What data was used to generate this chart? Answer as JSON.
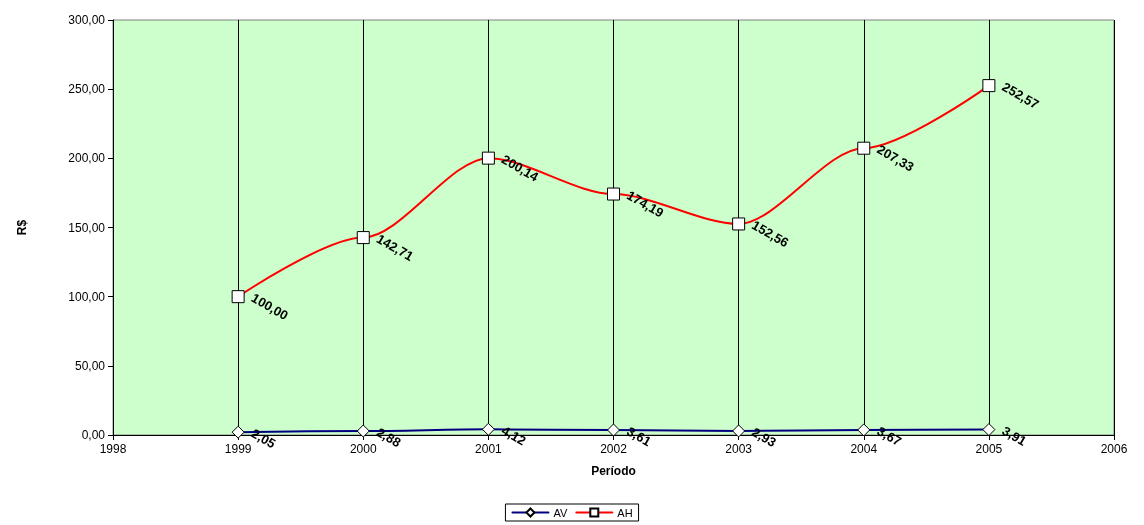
{
  "chart_data": {
    "type": "line",
    "xlabel": "Período",
    "ylabel": "R$",
    "x": [
      1999,
      2000,
      2001,
      2002,
      2003,
      2004,
      2005
    ],
    "xlim": [
      1998,
      2006
    ],
    "xticks": [
      1998,
      1999,
      2000,
      2001,
      2002,
      2003,
      2004,
      2005,
      2006
    ],
    "ylim": [
      0,
      300
    ],
    "yticks": [
      {
        "value": 0,
        "label": "0,00"
      },
      {
        "value": 50,
        "label": "50,00"
      },
      {
        "value": 100,
        "label": "100,00"
      },
      {
        "value": 150,
        "label": "150,00"
      },
      {
        "value": 200,
        "label": "200,00"
      },
      {
        "value": 250,
        "label": "250,00"
      },
      {
        "value": 300,
        "label": "300,00"
      }
    ],
    "series": [
      {
        "name": "AV",
        "color": "#000080",
        "marker": "diamond",
        "values": [
          2.05,
          2.88,
          4.12,
          3.61,
          2.93,
          3.67,
          3.91
        ],
        "value_labels": [
          "2,05",
          "2,88",
          "4,12",
          "3,61",
          "2,93",
          "3,67",
          "3,91"
        ]
      },
      {
        "name": "AH",
        "color": "#ff0000",
        "marker": "square",
        "values": [
          100.0,
          142.71,
          200.14,
          174.19,
          152.56,
          207.33,
          252.57
        ],
        "value_labels": [
          "100,00",
          "142,71",
          "200,14",
          "174,19",
          "152,56",
          "207,33",
          "252,57"
        ]
      }
    ],
    "grid": "x",
    "legend": "bottom",
    "line_style": "solid"
  }
}
